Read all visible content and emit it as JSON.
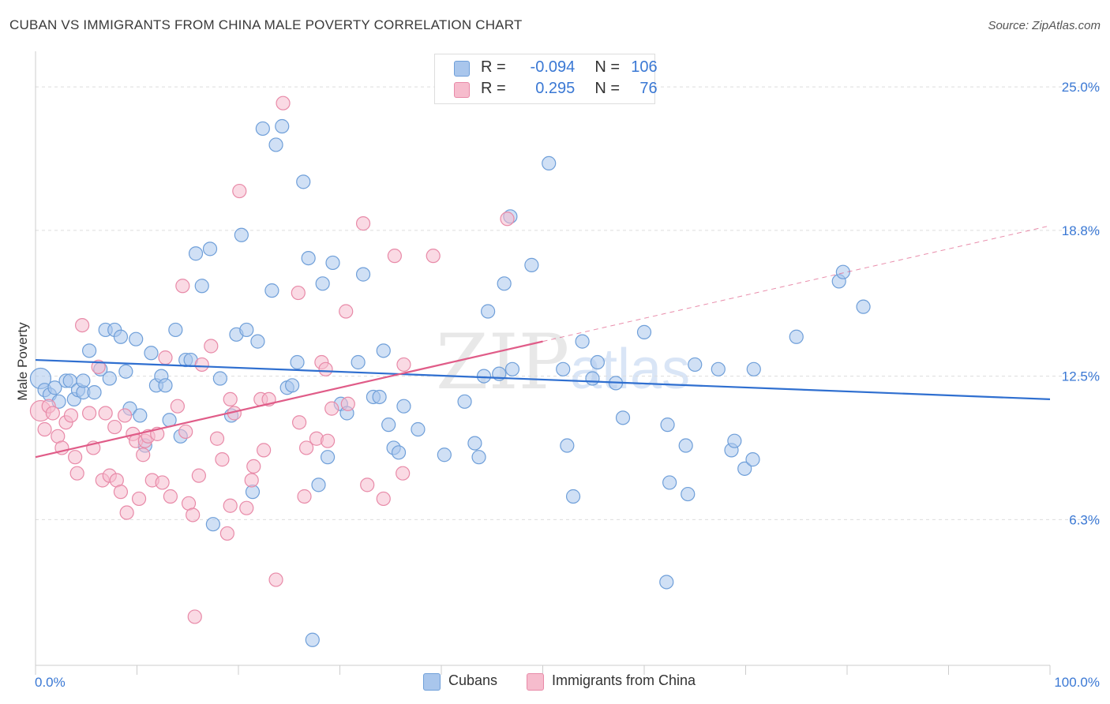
{
  "title": "CUBAN VS IMMIGRANTS FROM CHINA MALE POVERTY CORRELATION CHART",
  "source": "Source: ZipAtlas.com",
  "watermark": {
    "zip": "ZIP",
    "atlas": "atlas"
  },
  "legend": {
    "rows": [
      {
        "r_label": "R =",
        "r_value": "-0.094",
        "n_label": "N =",
        "n_value": "106"
      },
      {
        "r_label": "R =",
        "r_value": "0.295",
        "n_label": "N =",
        "n_value": "76"
      }
    ]
  },
  "bottom_legend": {
    "series1": "Cubans",
    "series2": "Immigrants from China"
  },
  "colors": {
    "blue_fill": "#a9c6ec",
    "blue_stroke": "#6f9fd9",
    "blue_line": "#2f6fd0",
    "pink_fill": "#f6bccd",
    "pink_stroke": "#e88aa8",
    "pink_line": "#e05c88",
    "tick_label": "#3a78d4",
    "grid": "#dddddd"
  },
  "chart_data": {
    "type": "scatter",
    "title": "CUBAN VS IMMIGRANTS FROM CHINA MALE POVERTY CORRELATION CHART",
    "xlabel": "",
    "ylabel": "Male Poverty",
    "xlim": [
      0,
      100
    ],
    "ylim": [
      0,
      26.2
    ],
    "x_tick_labels": [
      "0.0%",
      "100.0%"
    ],
    "y_ticks": [
      6.3,
      12.5,
      18.8,
      25.0
    ],
    "y_tick_labels": [
      "6.3%",
      "12.5%",
      "18.8%",
      "25.0%"
    ],
    "grid": true,
    "legend_position": "top-center",
    "series": [
      {
        "name": "Cubans",
        "trend": {
          "x": [
            0,
            100
          ],
          "y": [
            13.2,
            11.5
          ],
          "dashed_extension": false
        },
        "points": [
          {
            "x": 0.5,
            "y": 12.4,
            "big": true
          },
          {
            "x": 0.9,
            "y": 11.9
          },
          {
            "x": 1.4,
            "y": 11.7
          },
          {
            "x": 1.9,
            "y": 12.0
          },
          {
            "x": 2.3,
            "y": 11.4
          },
          {
            "x": 3.0,
            "y": 12.3
          },
          {
            "x": 3.4,
            "y": 12.3
          },
          {
            "x": 3.8,
            "y": 11.5
          },
          {
            "x": 4.2,
            "y": 11.9
          },
          {
            "x": 4.7,
            "y": 11.8
          },
          {
            "x": 4.7,
            "y": 12.3
          },
          {
            "x": 5.3,
            "y": 13.6
          },
          {
            "x": 5.8,
            "y": 11.8
          },
          {
            "x": 6.4,
            "y": 12.8
          },
          {
            "x": 6.9,
            "y": 14.5
          },
          {
            "x": 7.3,
            "y": 12.4
          },
          {
            "x": 7.8,
            "y": 14.5
          },
          {
            "x": 8.4,
            "y": 14.2
          },
          {
            "x": 8.9,
            "y": 12.7
          },
          {
            "x": 9.3,
            "y": 11.1
          },
          {
            "x": 9.9,
            "y": 14.1
          },
          {
            "x": 10.3,
            "y": 10.8
          },
          {
            "x": 10.8,
            "y": 9.5
          },
          {
            "x": 11.4,
            "y": 13.5
          },
          {
            "x": 11.9,
            "y": 12.1
          },
          {
            "x": 12.4,
            "y": 12.5
          },
          {
            "x": 12.8,
            "y": 12.1
          },
          {
            "x": 13.2,
            "y": 10.6
          },
          {
            "x": 13.8,
            "y": 14.5
          },
          {
            "x": 14.3,
            "y": 9.9
          },
          {
            "x": 14.8,
            "y": 13.2
          },
          {
            "x": 15.3,
            "y": 13.2
          },
          {
            "x": 15.8,
            "y": 17.8
          },
          {
            "x": 16.4,
            "y": 16.4
          },
          {
            "x": 17.2,
            "y": 18.0
          },
          {
            "x": 17.5,
            "y": 6.1
          },
          {
            "x": 18.2,
            "y": 12.4
          },
          {
            "x": 19.3,
            "y": 10.8
          },
          {
            "x": 19.8,
            "y": 14.3
          },
          {
            "x": 20.3,
            "y": 18.6
          },
          {
            "x": 20.8,
            "y": 14.5
          },
          {
            "x": 21.4,
            "y": 7.5
          },
          {
            "x": 21.9,
            "y": 14.0
          },
          {
            "x": 22.4,
            "y": 23.2
          },
          {
            "x": 23.3,
            "y": 16.2
          },
          {
            "x": 23.7,
            "y": 22.5
          },
          {
            "x": 24.3,
            "y": 23.3
          },
          {
            "x": 24.8,
            "y": 12.0
          },
          {
            "x": 25.3,
            "y": 12.1
          },
          {
            "x": 25.8,
            "y": 13.1
          },
          {
            "x": 26.4,
            "y": 20.9
          },
          {
            "x": 26.9,
            "y": 17.6
          },
          {
            "x": 27.3,
            "y": 1.1
          },
          {
            "x": 27.9,
            "y": 7.8
          },
          {
            "x": 28.3,
            "y": 16.5
          },
          {
            "x": 28.8,
            "y": 9.0
          },
          {
            "x": 29.3,
            "y": 17.4
          },
          {
            "x": 30.1,
            "y": 11.3
          },
          {
            "x": 30.7,
            "y": 10.9
          },
          {
            "x": 31.8,
            "y": 13.1
          },
          {
            "x": 32.3,
            "y": 16.9
          },
          {
            "x": 33.3,
            "y": 11.6
          },
          {
            "x": 33.9,
            "y": 11.6
          },
          {
            "x": 34.3,
            "y": 13.6
          },
          {
            "x": 34.8,
            "y": 10.4
          },
          {
            "x": 35.3,
            "y": 9.4
          },
          {
            "x": 35.8,
            "y": 9.2
          },
          {
            "x": 36.3,
            "y": 11.2
          },
          {
            "x": 37.7,
            "y": 10.2
          },
          {
            "x": 40.3,
            "y": 9.1
          },
          {
            "x": 42.3,
            "y": 11.4
          },
          {
            "x": 43.3,
            "y": 9.6
          },
          {
            "x": 43.7,
            "y": 9.0
          },
          {
            "x": 44.2,
            "y": 12.5
          },
          {
            "x": 44.6,
            "y": 15.3
          },
          {
            "x": 45.7,
            "y": 12.6
          },
          {
            "x": 46.2,
            "y": 16.5
          },
          {
            "x": 46.8,
            "y": 19.4
          },
          {
            "x": 47.0,
            "y": 12.8
          },
          {
            "x": 48.9,
            "y": 17.3
          },
          {
            "x": 50.6,
            "y": 21.7
          },
          {
            "x": 52.0,
            "y": 12.8
          },
          {
            "x": 52.4,
            "y": 9.5
          },
          {
            "x": 53.0,
            "y": 7.3
          },
          {
            "x": 53.9,
            "y": 14.0
          },
          {
            "x": 54.9,
            "y": 12.4
          },
          {
            "x": 55.4,
            "y": 13.1
          },
          {
            "x": 57.2,
            "y": 12.2
          },
          {
            "x": 57.9,
            "y": 10.7
          },
          {
            "x": 60.0,
            "y": 14.4
          },
          {
            "x": 62.3,
            "y": 10.4
          },
          {
            "x": 62.5,
            "y": 7.9
          },
          {
            "x": 62.2,
            "y": 3.6
          },
          {
            "x": 64.1,
            "y": 9.5
          },
          {
            "x": 64.3,
            "y": 7.4
          },
          {
            "x": 65.0,
            "y": 13.0
          },
          {
            "x": 67.3,
            "y": 12.8
          },
          {
            "x": 68.6,
            "y": 9.3
          },
          {
            "x": 68.9,
            "y": 9.7
          },
          {
            "x": 69.9,
            "y": 8.5
          },
          {
            "x": 70.7,
            "y": 8.9
          },
          {
            "x": 70.8,
            "y": 12.8
          },
          {
            "x": 75.0,
            "y": 14.2
          },
          {
            "x": 79.2,
            "y": 16.6
          },
          {
            "x": 79.6,
            "y": 17.0
          },
          {
            "x": 81.6,
            "y": 15.5
          }
        ]
      },
      {
        "name": "Immigrants from China",
        "trend": {
          "x": [
            0,
            50
          ],
          "y": [
            9.0,
            14.0
          ],
          "dashed_extension": {
            "x": [
              50,
              100
            ],
            "y": [
              14.0,
              19.0
            ]
          }
        },
        "points": [
          {
            "x": 0.5,
            "y": 11.0,
            "big": true
          },
          {
            "x": 0.9,
            "y": 10.2
          },
          {
            "x": 1.3,
            "y": 11.2
          },
          {
            "x": 1.7,
            "y": 10.9
          },
          {
            "x": 2.2,
            "y": 9.9
          },
          {
            "x": 2.6,
            "y": 9.4
          },
          {
            "x": 3.0,
            "y": 10.5
          },
          {
            "x": 3.5,
            "y": 10.8
          },
          {
            "x": 3.9,
            "y": 9.0
          },
          {
            "x": 4.1,
            "y": 8.3
          },
          {
            "x": 4.6,
            "y": 14.7
          },
          {
            "x": 5.3,
            "y": 10.9
          },
          {
            "x": 5.7,
            "y": 9.4
          },
          {
            "x": 6.2,
            "y": 12.9
          },
          {
            "x": 6.6,
            "y": 8.0
          },
          {
            "x": 6.9,
            "y": 10.9
          },
          {
            "x": 7.3,
            "y": 8.2
          },
          {
            "x": 7.8,
            "y": 10.3
          },
          {
            "x": 8.0,
            "y": 8.0
          },
          {
            "x": 8.4,
            "y": 7.5
          },
          {
            "x": 8.8,
            "y": 10.8
          },
          {
            "x": 9.0,
            "y": 6.6
          },
          {
            "x": 9.6,
            "y": 10.0
          },
          {
            "x": 9.9,
            "y": 9.7
          },
          {
            "x": 10.2,
            "y": 7.2
          },
          {
            "x": 10.6,
            "y": 9.1
          },
          {
            "x": 10.8,
            "y": 9.7
          },
          {
            "x": 11.1,
            "y": 9.9
          },
          {
            "x": 11.5,
            "y": 8.0
          },
          {
            "x": 12.0,
            "y": 10.0
          },
          {
            "x": 12.5,
            "y": 7.9
          },
          {
            "x": 12.8,
            "y": 13.3
          },
          {
            "x": 13.3,
            "y": 7.3
          },
          {
            "x": 14.0,
            "y": 11.2
          },
          {
            "x": 14.5,
            "y": 16.4
          },
          {
            "x": 14.8,
            "y": 10.1
          },
          {
            "x": 15.1,
            "y": 7.0
          },
          {
            "x": 15.5,
            "y": 6.5
          },
          {
            "x": 15.7,
            "y": 2.1
          },
          {
            "x": 16.1,
            "y": 8.2
          },
          {
            "x": 16.4,
            "y": 13.0
          },
          {
            "x": 17.3,
            "y": 13.8
          },
          {
            "x": 17.9,
            "y": 9.8
          },
          {
            "x": 18.4,
            "y": 8.9
          },
          {
            "x": 18.9,
            "y": 5.7
          },
          {
            "x": 19.2,
            "y": 11.5
          },
          {
            "x": 19.2,
            "y": 6.9
          },
          {
            "x": 19.6,
            "y": 10.9
          },
          {
            "x": 20.1,
            "y": 20.5
          },
          {
            "x": 20.8,
            "y": 6.8
          },
          {
            "x": 21.3,
            "y": 8.0
          },
          {
            "x": 21.5,
            "y": 8.6
          },
          {
            "x": 22.2,
            "y": 11.5
          },
          {
            "x": 22.5,
            "y": 9.3
          },
          {
            "x": 23.0,
            "y": 11.5
          },
          {
            "x": 23.7,
            "y": 3.7
          },
          {
            "x": 24.4,
            "y": 24.3
          },
          {
            "x": 25.9,
            "y": 16.1
          },
          {
            "x": 26.0,
            "y": 10.5
          },
          {
            "x": 26.5,
            "y": 7.3
          },
          {
            "x": 26.7,
            "y": 9.4
          },
          {
            "x": 27.7,
            "y": 9.8
          },
          {
            "x": 28.2,
            "y": 13.1
          },
          {
            "x": 28.6,
            "y": 12.8
          },
          {
            "x": 28.8,
            "y": 9.7
          },
          {
            "x": 29.2,
            "y": 11.1
          },
          {
            "x": 30.6,
            "y": 15.3
          },
          {
            "x": 30.8,
            "y": 11.3
          },
          {
            "x": 32.3,
            "y": 19.1
          },
          {
            "x": 32.7,
            "y": 7.8
          },
          {
            "x": 34.3,
            "y": 7.2
          },
          {
            "x": 35.4,
            "y": 17.7
          },
          {
            "x": 36.2,
            "y": 8.3
          },
          {
            "x": 36.3,
            "y": 13.0
          },
          {
            "x": 39.2,
            "y": 17.7
          },
          {
            "x": 46.5,
            "y": 19.3
          }
        ]
      }
    ]
  }
}
